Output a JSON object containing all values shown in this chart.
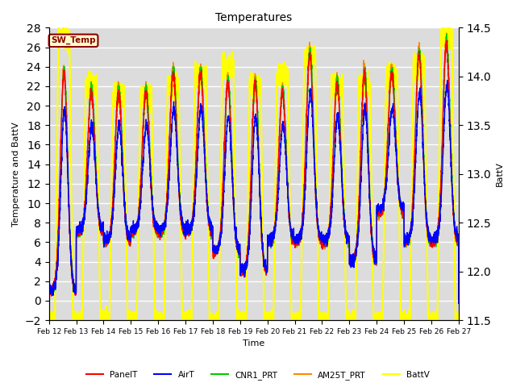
{
  "title": "Temperatures",
  "xlabel": "Time",
  "ylabel_left": "Temperature and BattV",
  "ylabel_right": "BattV",
  "ylim_left": [
    -2,
    28
  ],
  "ylim_right": [
    11.5,
    14.5
  ],
  "yticks_left": [
    -2,
    0,
    2,
    4,
    6,
    8,
    10,
    12,
    14,
    16,
    18,
    20,
    22,
    24,
    26,
    28
  ],
  "yticks_right": [
    11.5,
    12.0,
    12.5,
    13.0,
    13.5,
    14.0,
    14.5
  ],
  "date_start": 12,
  "date_end": 27,
  "annotation_text": "SW_Temp",
  "annotation_color": "#8B0000",
  "annotation_bg": "#FFFFCC",
  "annotation_border": "#8B0000",
  "series": {
    "PanelT": {
      "color": "#FF0000",
      "linewidth": 1.0
    },
    "AirT": {
      "color": "#0000FF",
      "linewidth": 1.0
    },
    "CNR1_PRT": {
      "color": "#00CC00",
      "linewidth": 1.0
    },
    "AM25T_PRT": {
      "color": "#FF8800",
      "linewidth": 1.0
    },
    "BattV": {
      "color": "#FFFF00",
      "linewidth": 1.5
    }
  },
  "bg_color": "#DCDCDC",
  "grid_color": "#FFFFFF",
  "n_days": 15,
  "points_per_day": 288
}
